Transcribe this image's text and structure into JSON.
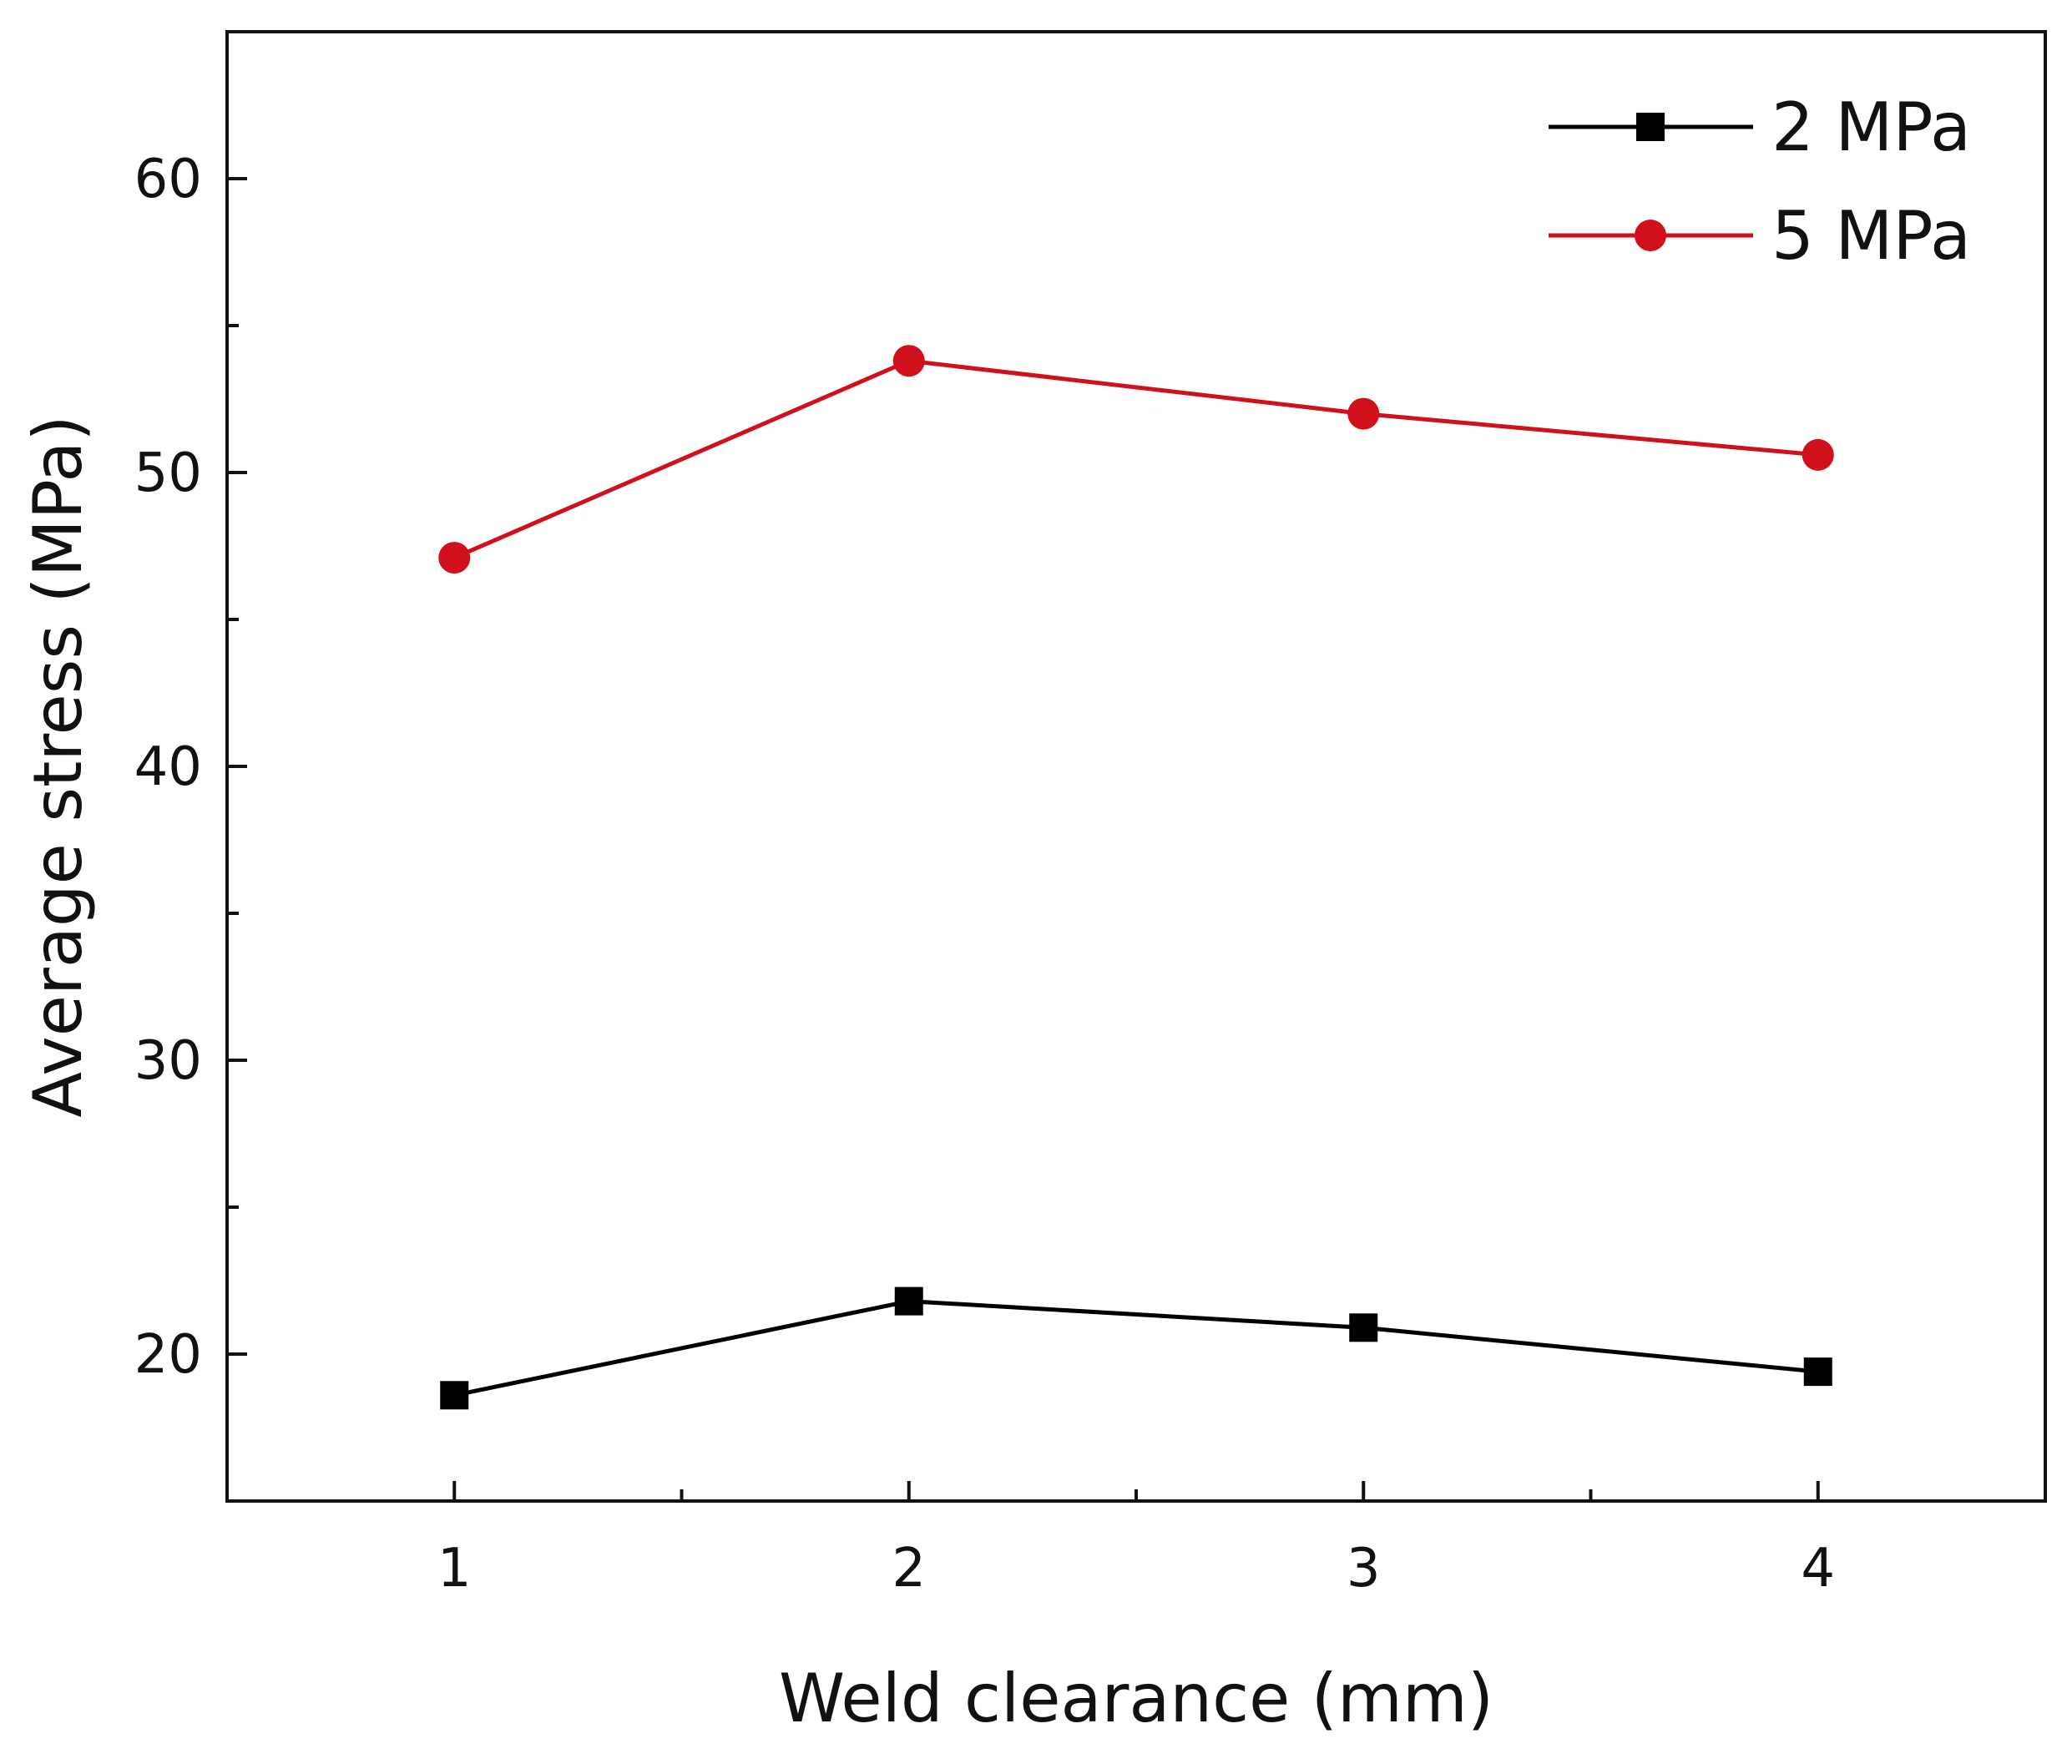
{
  "chart_data": {
    "type": "line",
    "title": "",
    "xlabel": "Weld clearance (mm)",
    "ylabel": "Average stress (MPa)",
    "x": [
      1,
      2,
      3,
      4
    ],
    "xlim": [
      0.5,
      4.5
    ],
    "ylim": [
      15,
      65
    ],
    "xticks": [
      1,
      2,
      3,
      4
    ],
    "yticks": [
      20,
      30,
      40,
      50,
      60
    ],
    "x_minor_ticks": [
      1.5,
      2.5,
      3.5
    ],
    "y_minor_ticks": [
      25,
      35,
      45,
      55
    ],
    "grid": false,
    "legend_position": "top-right",
    "series": [
      {
        "name": "2 MPa",
        "values": [
          18.6,
          21.8,
          20.9,
          19.4
        ],
        "color": "#000000",
        "marker": "square"
      },
      {
        "name": "5 MPa",
        "values": [
          47.1,
          53.8,
          52.0,
          50.6
        ],
        "color": "#d0101a",
        "marker": "circle"
      }
    ]
  }
}
